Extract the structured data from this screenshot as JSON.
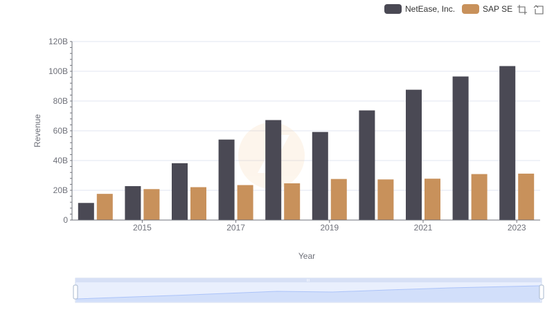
{
  "chart_data": {
    "type": "bar",
    "xlabel": "Year",
    "ylabel": "Revenue",
    "ylim": [
      0,
      120000000000
    ],
    "y_ticks": [
      "0",
      "20B",
      "40B",
      "60B",
      "80B",
      "100B",
      "120B"
    ],
    "x_tick_labels": [
      "2015",
      "2017",
      "2019",
      "2021",
      "2023"
    ],
    "categories": [
      "2014",
      "2015",
      "2016",
      "2017",
      "2018",
      "2019",
      "2020",
      "2021",
      "2022",
      "2023"
    ],
    "series": [
      {
        "name": "NetEase, Inc.",
        "color": "#4a4954",
        "values": [
          11500000000,
          22800000000,
          38200000000,
          54100000000,
          67200000000,
          59200000000,
          73700000000,
          87600000000,
          96500000000,
          103500000000
        ]
      },
      {
        "name": "SAP SE",
        "color": "#c8915b",
        "values": [
          17600000000,
          20800000000,
          22100000000,
          23500000000,
          24700000000,
          27600000000,
          27300000000,
          27800000000,
          30900000000,
          31200000000
        ]
      }
    ],
    "grid": true,
    "legend_position": "top-right"
  },
  "toolbox": {
    "icons": [
      "zoom-icon",
      "zoom-reset-icon"
    ]
  },
  "datazoom": {
    "handle_label": "III"
  }
}
